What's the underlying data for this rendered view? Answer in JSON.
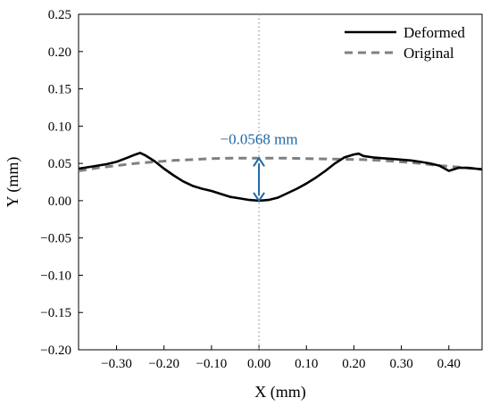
{
  "chart_data": {
    "type": "line",
    "xlabel": "X (mm)",
    "ylabel": "Y (mm)",
    "xlim": [
      -0.38,
      0.47
    ],
    "ylim": [
      -0.2,
      0.25
    ],
    "xticks": [
      "−0.30",
      "−0.20",
      "−0.10",
      "0.00",
      "0.10",
      "0.20",
      "0.30",
      "0.40"
    ],
    "xtick_values": [
      -0.3,
      -0.2,
      -0.1,
      0.0,
      0.1,
      0.2,
      0.3,
      0.4
    ],
    "yticks": [
      "0.25",
      "0.20",
      "0.15",
      "0.10",
      "0.05",
      "0.00",
      "−0.05",
      "−0.10",
      "−0.15",
      "−0.20"
    ],
    "ytick_values": [
      0.25,
      0.2,
      0.15,
      0.1,
      0.05,
      0.0,
      -0.05,
      -0.1,
      -0.15,
      -0.2
    ],
    "legend_position": "top-right",
    "grid": false,
    "annotation": {
      "text": "−0.0568 mm",
      "x": 0.0,
      "y_top": 0.057,
      "y_bottom": 0.0,
      "color": "#1f66a6"
    },
    "reference_line": {
      "x": 0.0,
      "style": "dotted",
      "color": "#999999"
    },
    "series": [
      {
        "name": "Deformed",
        "color": "#000000",
        "style": "solid",
        "x": [
          -0.38,
          -0.35,
          -0.32,
          -0.3,
          -0.28,
          -0.26,
          -0.25,
          -0.24,
          -0.22,
          -0.2,
          -0.18,
          -0.16,
          -0.14,
          -0.12,
          -0.1,
          -0.08,
          -0.06,
          -0.04,
          -0.02,
          0.0,
          0.02,
          0.04,
          0.06,
          0.08,
          0.1,
          0.12,
          0.14,
          0.16,
          0.18,
          0.2,
          0.21,
          0.22,
          0.24,
          0.26,
          0.28,
          0.3,
          0.32,
          0.34,
          0.36,
          0.38,
          0.4,
          0.42,
          0.44,
          0.47
        ],
        "y": [
          0.043,
          0.046,
          0.049,
          0.052,
          0.057,
          0.062,
          0.064,
          0.061,
          0.053,
          0.043,
          0.034,
          0.026,
          0.02,
          0.016,
          0.013,
          0.009,
          0.005,
          0.003,
          0.001,
          0.0,
          0.001,
          0.004,
          0.01,
          0.016,
          0.023,
          0.031,
          0.04,
          0.05,
          0.058,
          0.062,
          0.063,
          0.06,
          0.058,
          0.057,
          0.056,
          0.055,
          0.054,
          0.052,
          0.05,
          0.047,
          0.04,
          0.044,
          0.044,
          0.042
        ]
      },
      {
        "name": "Original",
        "color": "#808080",
        "style": "dashed",
        "x": [
          -0.38,
          -0.34,
          -0.3,
          -0.26,
          -0.22,
          -0.18,
          -0.14,
          -0.1,
          -0.06,
          -0.02,
          0.0,
          0.02,
          0.06,
          0.1,
          0.14,
          0.18,
          0.22,
          0.26,
          0.3,
          0.34,
          0.38,
          0.42,
          0.47
        ],
        "y": [
          0.04,
          0.044,
          0.047,
          0.05,
          0.052,
          0.054,
          0.055,
          0.0565,
          0.057,
          0.057,
          0.057,
          0.057,
          0.057,
          0.0565,
          0.056,
          0.0555,
          0.055,
          0.054,
          0.052,
          0.05,
          0.047,
          0.045,
          0.042
        ]
      }
    ]
  }
}
